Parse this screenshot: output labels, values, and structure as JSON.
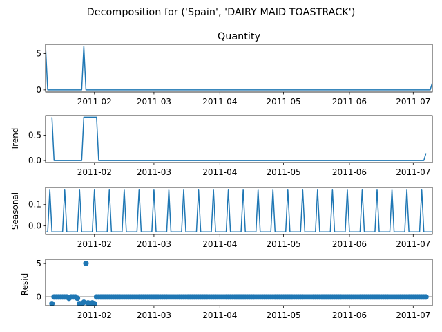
{
  "figure": {
    "suptitle": "Decomposition for ('Spain', 'DAIRY MAID TOASTRACK')",
    "line_color": "#1f77b4"
  },
  "chart_data": [
    {
      "type": "line",
      "title": "Quantity",
      "ylabel": "",
      "xlim": [
        "2011-01-09",
        "2011-07-10"
      ],
      "ylim": [
        -0.3,
        6.3
      ],
      "yticks": [
        0,
        5
      ],
      "xticks": [
        "2011-02-01",
        "2011-03-01",
        "2011-04-01",
        "2011-05-01",
        "2011-06-01",
        "2011-07-01"
      ],
      "xtick_labels": [
        "2011-02",
        "2011-03",
        "2011-04",
        "2011-05",
        "2011-06",
        "2011-07"
      ],
      "x_start": "2011-01-09",
      "x_end": "2011-07-10",
      "default_value": 0,
      "events": [
        {
          "x": "2011-01-09",
          "y": 6
        },
        {
          "x": "2011-01-27",
          "y": 6
        },
        {
          "x": "2011-07-10",
          "y": 1
        }
      ]
    },
    {
      "type": "line",
      "title": "",
      "ylabel": "Trend",
      "xlim": [
        "2011-01-09",
        "2011-07-10"
      ],
      "ylim": [
        -0.04,
        0.89
      ],
      "yticks": [
        0.0,
        0.5
      ],
      "xticks": [
        "2011-02-01",
        "2011-03-01",
        "2011-04-01",
        "2011-05-01",
        "2011-06-01",
        "2011-07-01"
      ],
      "xtick_labels": [
        "2011-02",
        "2011-03",
        "2011-04",
        "2011-05",
        "2011-06",
        "2011-07"
      ],
      "points": [
        {
          "x": "2011-01-12",
          "y": 0.857
        },
        {
          "x": "2011-01-13",
          "y": 0.0
        },
        {
          "x": "2011-01-26",
          "y": 0.0
        },
        {
          "x": "2011-01-27",
          "y": 0.857
        },
        {
          "x": "2011-02-02",
          "y": 0.857
        },
        {
          "x": "2011-02-03",
          "y": 0.0
        },
        {
          "x": "2011-07-06",
          "y": 0.0
        },
        {
          "x": "2011-07-07",
          "y": 0.143
        }
      ]
    },
    {
      "type": "line",
      "title": "",
      "ylabel": "Seasonal",
      "xlim": [
        "2011-01-09",
        "2011-07-10"
      ],
      "ylim": [
        -0.04,
        0.18
      ],
      "yticks": [
        0.0,
        0.1
      ],
      "xticks": [
        "2011-02-01",
        "2011-03-01",
        "2011-04-01",
        "2011-05-01",
        "2011-06-01",
        "2011-07-01"
      ],
      "xtick_labels": [
        "2011-02",
        "2011-03",
        "2011-04",
        "2011-05",
        "2011-06",
        "2011-07"
      ],
      "pattern_start": "2011-01-09",
      "pattern_end": "2011-07-10",
      "weekly_pattern": [
        -0.028,
        -0.028,
        0.171,
        -0.028,
        -0.028,
        -0.028,
        -0.028
      ]
    },
    {
      "type": "scatter",
      "title": "",
      "ylabel": "Resid",
      "xlim": [
        "2011-01-09",
        "2011-07-10"
      ],
      "ylim": [
        -1.3,
        5.6
      ],
      "yticks": [
        0,
        5
      ],
      "xticks": [
        "2011-02-01",
        "2011-03-01",
        "2011-04-01",
        "2011-05-01",
        "2011-06-01",
        "2011-07-01"
      ],
      "xtick_labels": [
        "2011-02",
        "2011-03",
        "2011-04",
        "2011-05",
        "2011-06",
        "2011-07"
      ],
      "x_start": "2011-01-12",
      "x_end": "2011-07-07",
      "default_value": 0,
      "baseline": 0,
      "overrides": [
        {
          "x": "2011-01-12",
          "y": -1.0
        },
        {
          "x": "2011-01-20",
          "y": -0.2
        },
        {
          "x": "2011-01-24",
          "y": -0.2
        },
        {
          "x": "2011-01-25",
          "y": -1.0
        },
        {
          "x": "2011-01-26",
          "y": -1.0
        },
        {
          "x": "2011-01-27",
          "y": -0.8
        },
        {
          "x": "2011-01-28",
          "y": 5.0
        },
        {
          "x": "2011-01-29",
          "y": -0.9
        },
        {
          "x": "2011-01-30",
          "y": -1.0
        },
        {
          "x": "2011-01-31",
          "y": -0.9
        },
        {
          "x": "2011-02-01",
          "y": -1.0
        }
      ]
    }
  ]
}
